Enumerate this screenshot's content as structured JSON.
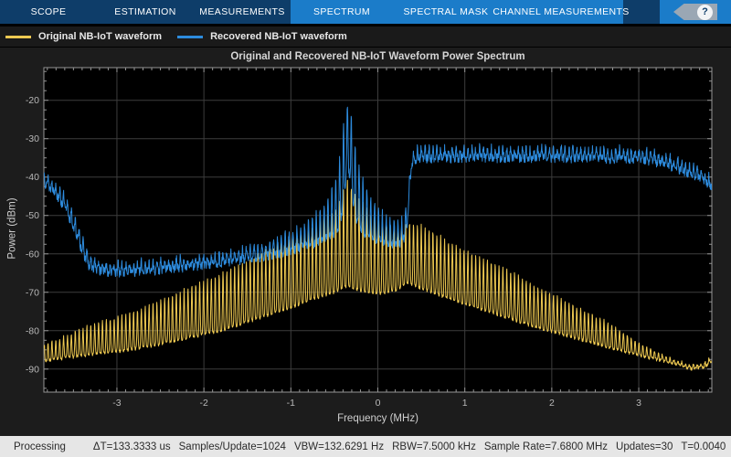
{
  "toolbar": {
    "tabs": [
      {
        "label": "SCOPE",
        "highlighted": false
      },
      {
        "label": "ESTIMATION",
        "highlighted": false
      },
      {
        "label": "MEASUREMENTS",
        "highlighted": false
      },
      {
        "label": "SPECTRUM",
        "highlighted": true,
        "selected": true
      },
      {
        "label": "SPECTRAL MASK",
        "highlighted": true
      },
      {
        "label": "CHANNEL MEASUREMENTS",
        "highlighted": true
      }
    ],
    "help_label": "?",
    "bg": "#0e3d69",
    "highlight_bg": "#1b7cc9"
  },
  "status_bar": {
    "state": "Processing",
    "items": [
      "ΔT=133.3333 us",
      "Samples/Update=1024",
      "VBW=132.6291 Hz",
      "RBW=7.5000 kHz",
      "Sample Rate=7.6800 MHz",
      "Updates=30",
      "T=0.0040"
    ],
    "bg": "#e6e6e6"
  },
  "chart_data": {
    "type": "line",
    "title": "Original and Recovered NB-IoT Waveform Power Spectrum",
    "xlabel": "Frequency (MHz)",
    "ylabel": "Power (dBm)",
    "xlim": [
      -3.84,
      3.84
    ],
    "ylim": [
      -96,
      -11.5
    ],
    "x_ticks": [
      -3,
      -2,
      -1,
      0,
      1,
      2,
      3
    ],
    "y_ticks": [
      -20,
      -30,
      -40,
      -50,
      -60,
      -70,
      -80,
      -90
    ],
    "x_minor_step": 0.1,
    "y_minor_step": 2.5,
    "grid": true,
    "legend_position": "top-left-outside",
    "colors": {
      "plot_bg": "#000000",
      "grid": "#3d3d3d",
      "axis": "#969696",
      "tick_text": "#b8b8b8",
      "title_text": "#d6d6d6"
    },
    "comb_period_mhz": 0.0447,
    "comb_anchor_mhz": -0.35,
    "series": [
      {
        "name": "Original NB-IoT waveform",
        "color": "#eec951",
        "style": "comb",
        "noise_db": 0.4,
        "seed": 7,
        "envelope_upper": [
          [
            -3.84,
            -83.5
          ],
          [
            -3.6,
            -81.5
          ],
          [
            -3.3,
            -78.5
          ],
          [
            -3.0,
            -76.5
          ],
          [
            -2.7,
            -74
          ],
          [
            -2.4,
            -71
          ],
          [
            -2.1,
            -68
          ],
          [
            -1.8,
            -65
          ],
          [
            -1.5,
            -61.5
          ],
          [
            -1.2,
            -58
          ],
          [
            -1.0,
            -55.5
          ],
          [
            -0.8,
            -53
          ],
          [
            -0.65,
            -51
          ],
          [
            -0.5,
            -48.5
          ],
          [
            -0.42,
            -45.5
          ],
          [
            -0.35,
            -40.5
          ],
          [
            -0.28,
            -43.5
          ],
          [
            -0.2,
            -46
          ],
          [
            -0.1,
            -48.5
          ],
          [
            0,
            -50.5
          ],
          [
            0.1,
            -52
          ],
          [
            0.22,
            -53
          ],
          [
            0.3,
            -52.5
          ],
          [
            0.38,
            -51.5
          ],
          [
            0.5,
            -52.5
          ],
          [
            0.65,
            -54.5
          ],
          [
            0.8,
            -56.5
          ],
          [
            1.0,
            -59
          ],
          [
            1.2,
            -61
          ],
          [
            1.5,
            -64
          ],
          [
            1.8,
            -68
          ],
          [
            2.1,
            -71.5
          ],
          [
            2.4,
            -75
          ],
          [
            2.7,
            -78.5
          ],
          [
            3.0,
            -83
          ],
          [
            3.2,
            -85.5
          ],
          [
            3.4,
            -87.5
          ],
          [
            3.6,
            -89
          ],
          [
            3.75,
            -88.5
          ],
          [
            3.84,
            -86.5
          ]
        ],
        "envelope_lower": [
          [
            -3.84,
            -88
          ],
          [
            -3.4,
            -86.5
          ],
          [
            -3.0,
            -85.5
          ],
          [
            -2.6,
            -84
          ],
          [
            -2.2,
            -82
          ],
          [
            -1.8,
            -80
          ],
          [
            -1.4,
            -77
          ],
          [
            -1.0,
            -74
          ],
          [
            -0.7,
            -71.5
          ],
          [
            -0.5,
            -70
          ],
          [
            -0.35,
            -68.5
          ],
          [
            -0.2,
            -69.5
          ],
          [
            0,
            -70.5
          ],
          [
            0.2,
            -69.5
          ],
          [
            0.35,
            -67.5
          ],
          [
            0.5,
            -69
          ],
          [
            0.8,
            -71.5
          ],
          [
            1.0,
            -73
          ],
          [
            1.4,
            -76
          ],
          [
            1.8,
            -79
          ],
          [
            2.2,
            -81.5
          ],
          [
            2.6,
            -84
          ],
          [
            3.0,
            -86.5
          ],
          [
            3.2,
            -87.5
          ],
          [
            3.4,
            -88.5
          ],
          [
            3.6,
            -90
          ],
          [
            3.75,
            -89.5
          ],
          [
            3.84,
            -88
          ]
        ]
      },
      {
        "name": "Recovered NB-IoT waveform",
        "color": "#2d8bdd",
        "style": "comb",
        "noise_db": 1.2,
        "seed": 13,
        "envelope_upper": [
          [
            -3.84,
            -38.5
          ],
          [
            -3.72,
            -41
          ],
          [
            -3.6,
            -45
          ],
          [
            -3.5,
            -50
          ],
          [
            -3.42,
            -55
          ],
          [
            -3.32,
            -60.5
          ],
          [
            -3.2,
            -62
          ],
          [
            -3.0,
            -62.5
          ],
          [
            -2.6,
            -62
          ],
          [
            -2.2,
            -61
          ],
          [
            -1.8,
            -60
          ],
          [
            -1.5,
            -58.5
          ],
          [
            -1.25,
            -57
          ],
          [
            -1.05,
            -55
          ],
          [
            -0.9,
            -53
          ],
          [
            -0.75,
            -50.5
          ],
          [
            -0.62,
            -47.5
          ],
          [
            -0.52,
            -43
          ],
          [
            -0.45,
            -36
          ],
          [
            -0.4,
            -27.5
          ],
          [
            -0.35,
            -20.5
          ],
          [
            -0.3,
            -24
          ],
          [
            -0.26,
            -31
          ],
          [
            -0.21,
            -37
          ],
          [
            -0.16,
            -42
          ],
          [
            -0.08,
            -46
          ],
          [
            0,
            -48.5
          ],
          [
            0.1,
            -50.5
          ],
          [
            0.2,
            -51.5
          ],
          [
            0.28,
            -51
          ],
          [
            0.33,
            -46.5
          ],
          [
            0.36,
            -41
          ],
          [
            0.39,
            -34
          ],
          [
            0.45,
            -32.5
          ],
          [
            0.8,
            -32.5
          ],
          [
            1.2,
            -32.3
          ],
          [
            1.6,
            -32.5
          ],
          [
            2.0,
            -32.3
          ],
          [
            2.4,
            -32.5
          ],
          [
            2.8,
            -32.7
          ],
          [
            3.1,
            -33.2
          ],
          [
            3.35,
            -34.5
          ],
          [
            3.55,
            -36.5
          ],
          [
            3.7,
            -38
          ],
          [
            3.84,
            -40
          ]
        ],
        "envelope_lower": [
          [
            -3.84,
            -41.5
          ],
          [
            -3.72,
            -44
          ],
          [
            -3.6,
            -48
          ],
          [
            -3.5,
            -53
          ],
          [
            -3.42,
            -58
          ],
          [
            -3.32,
            -63.5
          ],
          [
            -3.2,
            -64.5
          ],
          [
            -3.0,
            -65
          ],
          [
            -2.6,
            -64.5
          ],
          [
            -2.2,
            -63.5
          ],
          [
            -1.8,
            -62.5
          ],
          [
            -1.5,
            -61.5
          ],
          [
            -1.25,
            -60.5
          ],
          [
            -1.05,
            -59.5
          ],
          [
            -0.9,
            -58.5
          ],
          [
            -0.75,
            -57.5
          ],
          [
            -0.62,
            -56.5
          ],
          [
            -0.52,
            -55
          ],
          [
            -0.45,
            -53
          ],
          [
            -0.4,
            -48
          ],
          [
            -0.35,
            -36
          ],
          [
            -0.3,
            -44
          ],
          [
            -0.26,
            -50
          ],
          [
            -0.21,
            -53
          ],
          [
            -0.16,
            -54.5
          ],
          [
            -0.08,
            -55.5
          ],
          [
            0,
            -56.5
          ],
          [
            0.1,
            -57
          ],
          [
            0.2,
            -57.5
          ],
          [
            0.28,
            -57
          ],
          [
            0.33,
            -54
          ],
          [
            0.36,
            -47
          ],
          [
            0.39,
            -37
          ],
          [
            0.45,
            -35.2
          ],
          [
            0.8,
            -35.2
          ],
          [
            1.2,
            -35
          ],
          [
            1.6,
            -35.2
          ],
          [
            2.0,
            -35
          ],
          [
            2.4,
            -35.2
          ],
          [
            2.8,
            -35.4
          ],
          [
            3.1,
            -35.8
          ],
          [
            3.35,
            -37
          ],
          [
            3.55,
            -39
          ],
          [
            3.7,
            -40.5
          ],
          [
            3.84,
            -42.5
          ]
        ]
      }
    ]
  }
}
